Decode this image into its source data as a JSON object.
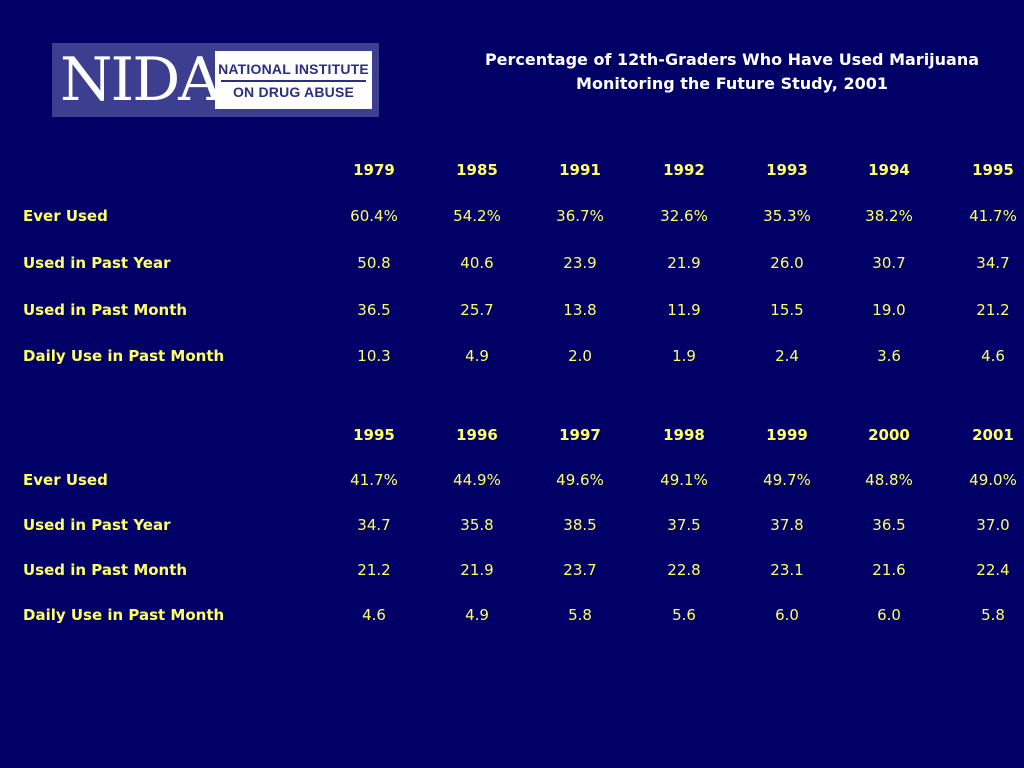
{
  "logo": {
    "nida": "NIDA",
    "line1": "NATIONAL INSTITUTE",
    "line2": "ON DRUG ABUSE"
  },
  "chart_data": [
    {
      "type": "table",
      "title": "Percentage of 12th-Graders Who Have Used Marijuana",
      "subtitle": "Monitoring the Future Study, 2001",
      "columns": [
        "1979",
        "1985",
        "1991",
        "1992",
        "1993",
        "1994",
        "1995"
      ],
      "rows": [
        {
          "label": "Ever Used",
          "values": [
            "60.4%",
            "54.2%",
            "36.7%",
            "32.6%",
            "35.3%",
            "38.2%",
            "41.7%"
          ]
        },
        {
          "label": "Used in Past Year",
          "values": [
            "50.8",
            "40.6",
            "23.9",
            "21.9",
            "26.0",
            "30.7",
            "34.7"
          ]
        },
        {
          "label": "Used in Past Month",
          "values": [
            "36.5",
            "25.7",
            "13.8",
            "11.9",
            "15.5",
            "19.0",
            "21.2"
          ]
        },
        {
          "label": "Daily Use in Past Month",
          "values": [
            "10.3",
            "4.9",
            "2.0",
            "1.9",
            "2.4",
            "3.6",
            "4.6"
          ]
        }
      ]
    },
    {
      "type": "table",
      "columns": [
        "1995",
        "1996",
        "1997",
        "1998",
        "1999",
        "2000",
        "2001"
      ],
      "rows": [
        {
          "label": "Ever Used",
          "values": [
            "41.7%",
            "44.9%",
            "49.6%",
            "49.1%",
            "49.7%",
            "48.8%",
            "49.0%"
          ]
        },
        {
          "label": "Used in Past Year",
          "values": [
            "34.7",
            "35.8",
            "38.5",
            "37.5",
            "37.8",
            "36.5",
            "37.0"
          ]
        },
        {
          "label": "Used in Past Month",
          "values": [
            "21.2",
            "21.9",
            "23.7",
            "22.8",
            "23.1",
            "21.6",
            "22.4"
          ]
        },
        {
          "label": "Daily Use in Past Month",
          "values": [
            "4.6",
            "4.9",
            "5.8",
            "5.6",
            "6.0",
            "6.0",
            "5.8"
          ]
        }
      ]
    }
  ]
}
